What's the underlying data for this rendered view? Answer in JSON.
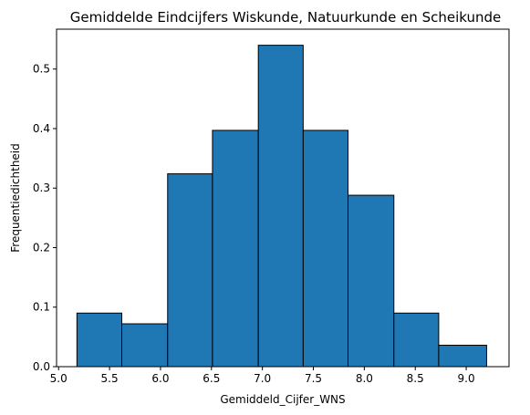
{
  "chart_data": {
    "type": "bar",
    "title": "Gemiddelde Eindcijfers Wiskunde, Natuurkunde en Scheikunde",
    "xlabel": "Gemiddeld_Cijfer_WNS",
    "ylabel": "Frequentiedichtheid",
    "xlim": [
      4.98,
      9.42
    ],
    "ylim": [
      0,
      0.567
    ],
    "xticks": [
      5.0,
      5.5,
      6.0,
      6.5,
      7.0,
      7.5,
      8.0,
      8.5,
      9.0
    ],
    "yticks": [
      0.0,
      0.1,
      0.2,
      0.3,
      0.4,
      0.5
    ],
    "bar_color": "#1f77b4",
    "edge_color": "#000000",
    "grid": false,
    "bins": [
      {
        "x0": 5.18,
        "x1": 5.62,
        "value": 0.09
      },
      {
        "x0": 5.62,
        "x1": 6.07,
        "value": 0.072
      },
      {
        "x0": 6.07,
        "x1": 6.51,
        "value": 0.324
      },
      {
        "x0": 6.51,
        "x1": 6.96,
        "value": 0.397
      },
      {
        "x0": 6.96,
        "x1": 7.4,
        "value": 0.54
      },
      {
        "x0": 7.4,
        "x1": 7.84,
        "value": 0.397
      },
      {
        "x0": 7.84,
        "x1": 8.29,
        "value": 0.288
      },
      {
        "x0": 8.29,
        "x1": 8.73,
        "value": 0.09
      },
      {
        "x0": 8.73,
        "x1": 9.2,
        "value": 0.036
      }
    ]
  }
}
